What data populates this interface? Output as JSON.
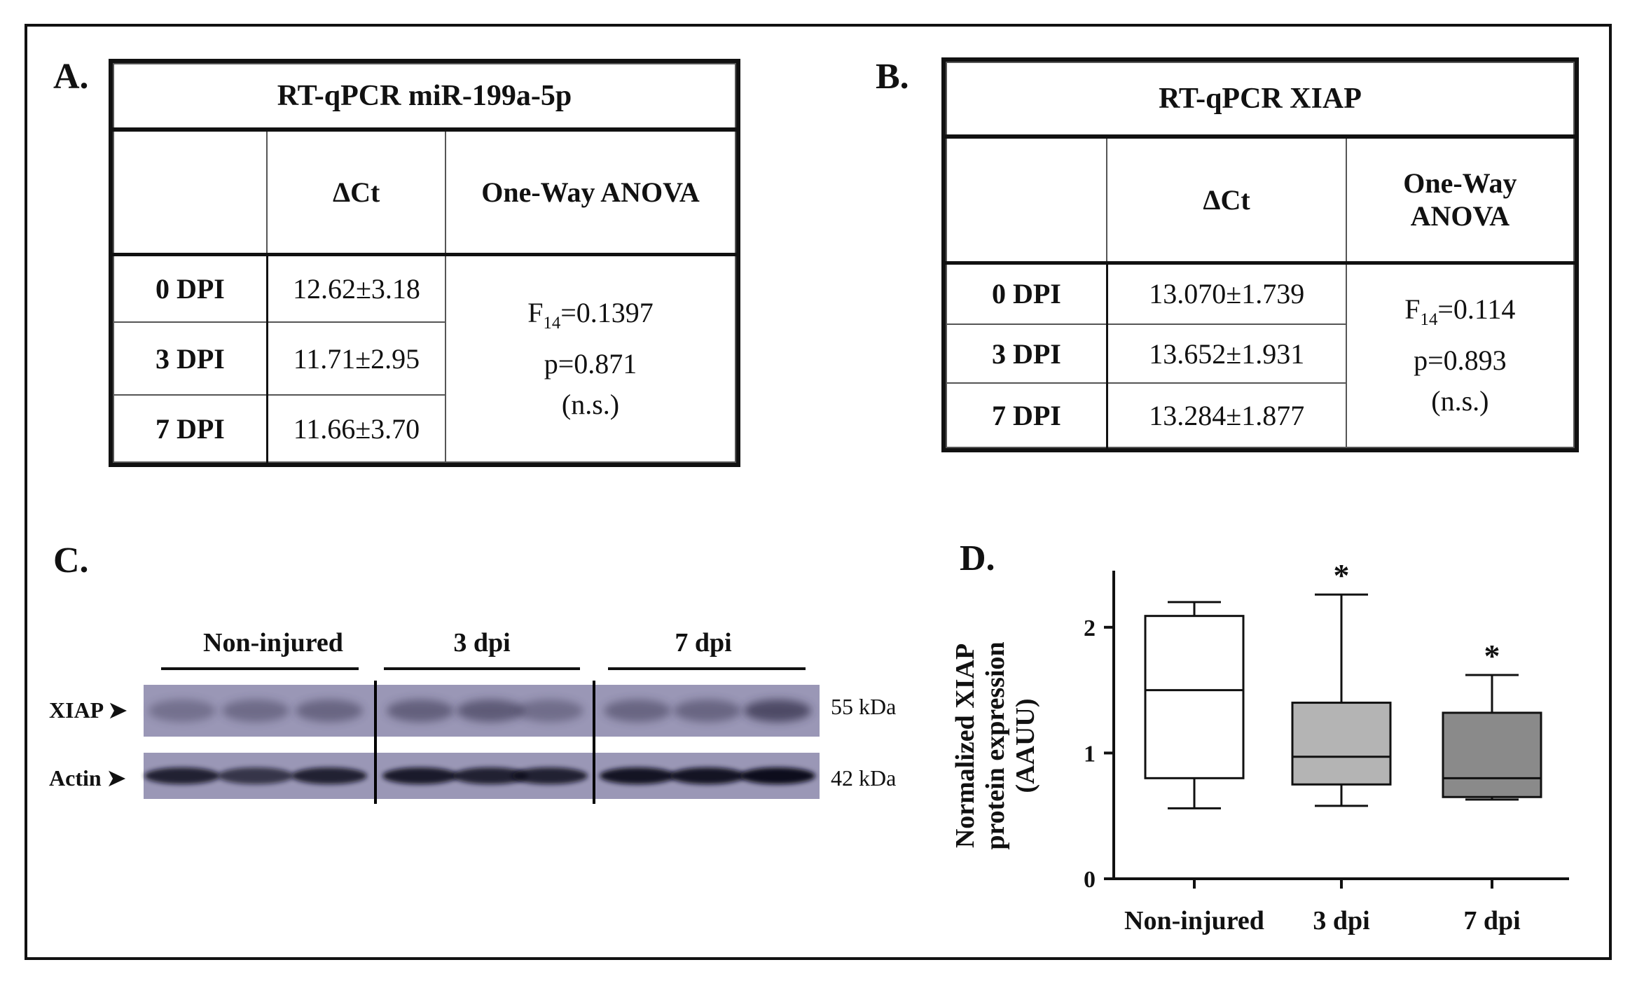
{
  "panels": {
    "a": "A.",
    "b": "B.",
    "c": "C.",
    "d": "D."
  },
  "table_a": {
    "title": "RT-qPCR miR-199a-5p",
    "col_delta": "ΔCt",
    "col_anova": "One-Way ANOVA",
    "rows": [
      {
        "label": "0 DPI",
        "value": "12.62±3.18"
      },
      {
        "label": "3 DPI",
        "value": "11.71±2.95"
      },
      {
        "label": "7 DPI",
        "value": "11.66±3.70"
      }
    ],
    "anova_f_prefix": "F",
    "anova_f_sub": "14",
    "anova_f_value": "=0.1397",
    "anova_p": "p=0.871",
    "anova_sig": "(n.s.)"
  },
  "table_b": {
    "title": "RT-qPCR XIAP",
    "col_delta": "ΔCt",
    "col_anova_line1": "One-Way",
    "col_anova_line2": "ANOVA",
    "rows": [
      {
        "label": "0 DPI",
        "value": "13.070±1.739"
      },
      {
        "label": "3 DPI",
        "value": "13.652±1.931"
      },
      {
        "label": "7 DPI",
        "value": "13.284±1.877"
      }
    ],
    "anova_f_prefix": "F",
    "anova_f_sub": "14",
    "anova_f_value": "=0.114",
    "anova_p": "p=0.893",
    "anova_sig": "(n.s.)"
  },
  "blot": {
    "groups": [
      "Non-injured",
      "3 dpi",
      "7 dpi"
    ],
    "rows": [
      {
        "label": "XIAP ➤",
        "kda": "55 kDa"
      },
      {
        "label": "Actin ➤",
        "kda": "42 kDa"
      }
    ],
    "band_color": "#2e2a45",
    "membrane_color": "#9a97b6"
  },
  "chart_data": {
    "type": "box",
    "title": "",
    "xlabel": "",
    "ylabel_line1": "Normalized XIAP",
    "ylabel_line2": "protein expression",
    "ylabel_line3": "(AAUU)",
    "ylim": [
      0,
      2.45
    ],
    "yticks": [
      0,
      1,
      2
    ],
    "categories": [
      "Non-injured",
      "3 dpi",
      "7 dpi"
    ],
    "boxes": [
      {
        "min": 0.56,
        "q1": 0.8,
        "median": 1.5,
        "q3": 2.09,
        "max": 2.2,
        "color": "#ffffff",
        "annotation": ""
      },
      {
        "min": 0.58,
        "q1": 0.75,
        "median": 0.97,
        "q3": 1.4,
        "max": 2.26,
        "color": "#b4b4b4",
        "annotation": "*"
      },
      {
        "min": 0.63,
        "q1": 0.65,
        "median": 0.8,
        "q3": 1.32,
        "max": 1.62,
        "color": "#8a8a8a",
        "annotation": "*"
      }
    ]
  }
}
